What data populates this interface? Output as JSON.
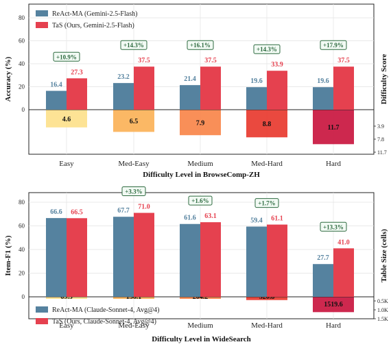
{
  "chart_data": [
    {
      "type": "bar",
      "categories": [
        "Easy",
        "Med-Easy",
        "Medium",
        "Med-Hard",
        "Hard"
      ],
      "xlabel": "Difficulty Level in BrowseComp-ZH",
      "ylabel": "Accuracy (%)",
      "ylabel_right": "Difficulty Score",
      "ylim": [
        0,
        80
      ],
      "yticks": [
        "0",
        "20",
        "40",
        "60",
        "80"
      ],
      "series": [
        {
          "name": "ReAct-MA (Gemini-2.5-Flash)",
          "values": [
            16.4,
            23.2,
            21.4,
            19.6,
            19.6
          ],
          "labels": [
            "16.4",
            "23.2",
            "21.4",
            "19.6",
            "19.6"
          ],
          "color": "#55829f"
        },
        {
          "name": "TaS (Ours, Gemini-2.5-Flash)",
          "values": [
            27.3,
            37.5,
            37.5,
            33.9,
            37.5
          ],
          "labels": [
            "27.3",
            "37.5",
            "37.5",
            "33.9",
            "37.5"
          ],
          "color": "#e5414f"
        }
      ],
      "improvements": [
        "+10.9%",
        "+14.3%",
        "+16.1%",
        "+14.3%",
        "+17.9%"
      ],
      "secondary": {
        "name": "Difficulty Score",
        "values": [
          4.6,
          6.5,
          7.9,
          8.8,
          11.7
        ],
        "labels": [
          "4.6",
          "6.5",
          "7.9",
          "8.8",
          "11.7"
        ],
        "colors": [
          "#fde18c",
          "#fbb258",
          "#f8864a",
          "#e8392f",
          "#c9163f"
        ],
        "max": 13,
        "ticks": [
          3.9,
          7.8,
          11.7
        ],
        "tick_labels": [
          "3.9",
          "7.8",
          "11.7"
        ]
      },
      "legend_position": "top-left",
      "grid": true
    },
    {
      "type": "bar",
      "categories": [
        "Easy",
        "Med-Easy",
        "Medium",
        "Med-Hard",
        "Hard"
      ],
      "xlabel": "Difficulty Level in WideSearch",
      "ylabel": "Item-F1 (%)",
      "ylabel_right": "Table Size (cells)",
      "ylim": [
        0,
        90
      ],
      "yticks": [
        "0",
        "20",
        "40",
        "60",
        "80"
      ],
      "series": [
        {
          "name": "ReAct-MA (Claude-Sonnet-4, Avg@4)",
          "values": [
            66.6,
            67.7,
            61.6,
            59.4,
            27.7
          ],
          "labels": [
            "66.6",
            "67.7",
            "61.6",
            "59.4",
            "27.7"
          ],
          "color": "#55829f"
        },
        {
          "name": "TaS (Ours, Claude-Sonnet-4, Avg@4)",
          "values": [
            66.5,
            71.0,
            63.1,
            61.1,
            41.0
          ],
          "labels": [
            "66.5",
            "71.0",
            "63.1",
            "61.1",
            "41.0"
          ],
          "color": "#e5414f"
        }
      ],
      "improvements": [
        "",
        "+3.3%",
        "+1.6%",
        "+1.7%",
        "+13.3%"
      ],
      "secondary": {
        "name": "Table Size (cells)",
        "values": [
          69.5,
          136.1,
          204.2,
          320.8,
          1519.6
        ],
        "labels": [
          "69.5",
          "136.1",
          "204.2",
          "320.8",
          "1519.6"
        ],
        "colors": [
          "#fde18c",
          "#fbb258",
          "#f8864a",
          "#e8392f",
          "#c9163f"
        ],
        "max": 1700,
        "ticks": [
          500,
          1000,
          1500
        ],
        "tick_labels": [
          "0.5K",
          "1.0K",
          "1.5K"
        ]
      },
      "legend_position": "bottom-left",
      "grid": true
    }
  ]
}
